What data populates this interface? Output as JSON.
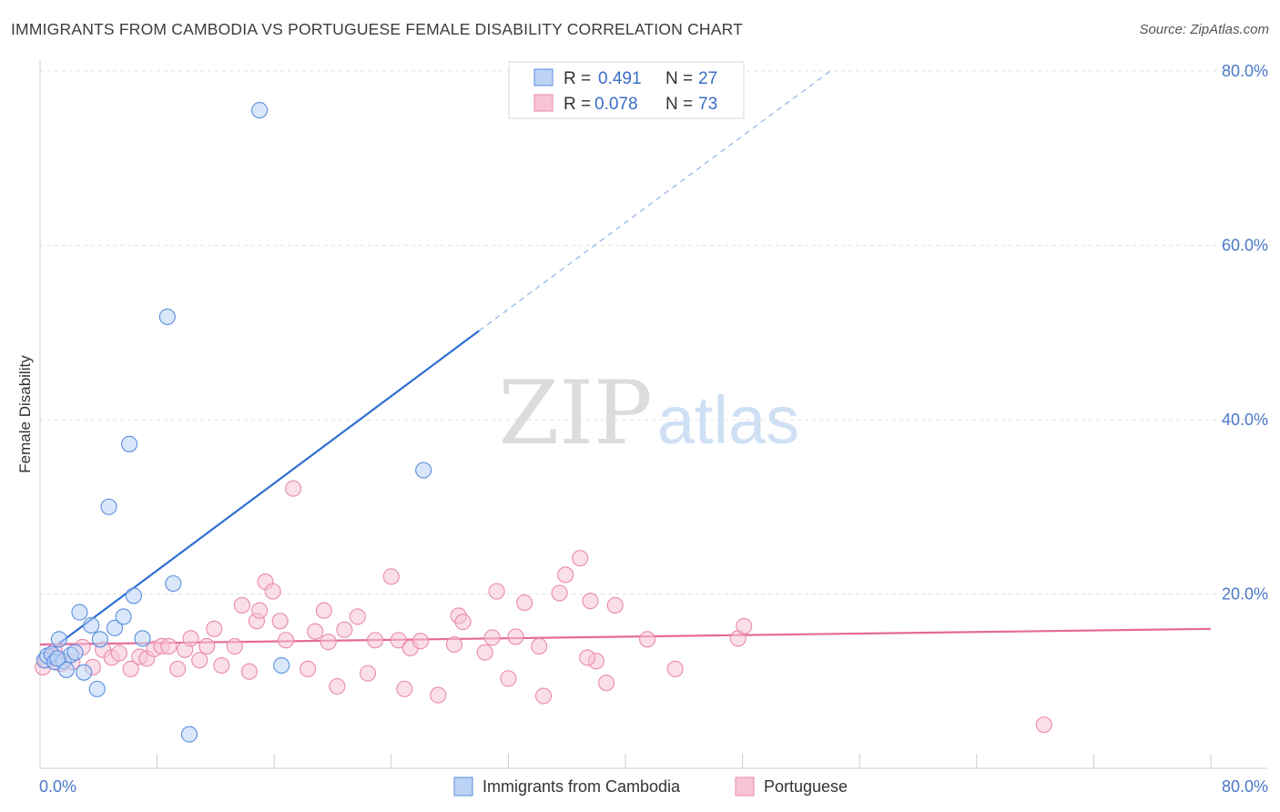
{
  "title": "IMMIGRANTS FROM CAMBODIA VS PORTUGUESE FEMALE DISABILITY CORRELATION CHART",
  "source": "Source: ZipAtlas.com",
  "colors": {
    "blue": "#4a82d8",
    "blue_fill": "#bcd3f5",
    "pink": "#e46a96",
    "pink_fill": "#f7c4d6",
    "grid": "#e3e3e3"
  },
  "chart_data": {
    "type": "scatter",
    "title": "IMMIGRANTS FROM CAMBODIA VS PORTUGUESE FEMALE DISABILITY CORRELATION CHART",
    "xlabel": "",
    "ylabel": "Female Disability",
    "xlim": [
      0,
      80
    ],
    "ylim": [
      0,
      80
    ],
    "x_tick_labels": [
      "0.0%",
      "80.0%"
    ],
    "y_tick_labels": [
      "20.0%",
      "40.0%",
      "60.0%",
      "80.0%"
    ],
    "y_ticks": [
      20,
      40,
      60,
      80
    ],
    "watermark": {
      "zip": "ZIP",
      "atlas": "atlas"
    },
    "legend": {
      "entries": [
        {
          "r_label": "R =",
          "r_value": "0.491",
          "n_label": "N =",
          "n_value": "27"
        },
        {
          "r_label": "R =",
          "r_value": "0.078",
          "n_label": "N =",
          "n_value": "73"
        }
      ]
    },
    "series": [
      {
        "name": "Immigrants from Cambodia",
        "color": "#4a82d8",
        "trend": {
          "x0": 0.4,
          "y0": 13.2,
          "x1": 30.0,
          "y1": 50.2,
          "dash_x1": 54.0,
          "dash_y1": 80.0
        },
        "points": [
          [
            0.3,
            12.4
          ],
          [
            0.5,
            12.9
          ],
          [
            0.8,
            13.1
          ],
          [
            1.0,
            12.2
          ],
          [
            1.3,
            14.8
          ],
          [
            1.6,
            12.3
          ],
          [
            1.8,
            11.3
          ],
          [
            2.1,
            13.0
          ],
          [
            2.4,
            13.3
          ],
          [
            2.7,
            17.9
          ],
          [
            3.0,
            11.0
          ],
          [
            3.5,
            16.4
          ],
          [
            3.9,
            9.1
          ],
          [
            4.1,
            14.8
          ],
          [
            5.1,
            16.1
          ],
          [
            5.7,
            17.4
          ],
          [
            6.1,
            37.2
          ],
          [
            6.4,
            19.8
          ],
          [
            4.7,
            30.0
          ],
          [
            7.0,
            14.9
          ],
          [
            8.7,
            51.8
          ],
          [
            9.1,
            21.2
          ],
          [
            10.2,
            3.9
          ],
          [
            15.0,
            75.5
          ],
          [
            16.5,
            11.8
          ],
          [
            26.2,
            34.2
          ],
          [
            1.2,
            12.6
          ]
        ]
      },
      {
        "name": "Portuguese",
        "color": "#e46a96",
        "trend": {
          "x0": 0.0,
          "y0": 14.2,
          "x1": 80.0,
          "y1": 16.0
        },
        "points": [
          [
            0.2,
            11.6
          ],
          [
            0.4,
            12.4
          ],
          [
            0.9,
            12.9
          ],
          [
            1.4,
            12.0
          ],
          [
            2.2,
            12.2
          ],
          [
            2.9,
            13.9
          ],
          [
            3.6,
            11.6
          ],
          [
            4.3,
            13.6
          ],
          [
            4.9,
            12.7
          ],
          [
            5.4,
            13.2
          ],
          [
            6.2,
            11.4
          ],
          [
            6.8,
            12.8
          ],
          [
            7.3,
            12.6
          ],
          [
            7.8,
            13.7
          ],
          [
            8.3,
            14.0
          ],
          [
            8.8,
            14.0
          ],
          [
            9.4,
            11.4
          ],
          [
            9.9,
            13.6
          ],
          [
            10.3,
            14.9
          ],
          [
            10.9,
            12.4
          ],
          [
            11.4,
            14.0
          ],
          [
            11.9,
            16.0
          ],
          [
            12.4,
            11.8
          ],
          [
            13.3,
            14.0
          ],
          [
            13.8,
            18.7
          ],
          [
            14.3,
            11.1
          ],
          [
            14.8,
            16.9
          ],
          [
            15.0,
            18.1
          ],
          [
            15.4,
            21.4
          ],
          [
            15.9,
            20.3
          ],
          [
            16.4,
            16.9
          ],
          [
            16.8,
            14.7
          ],
          [
            17.3,
            32.1
          ],
          [
            18.3,
            11.4
          ],
          [
            18.8,
            15.7
          ],
          [
            19.4,
            18.1
          ],
          [
            19.7,
            14.5
          ],
          [
            20.3,
            9.4
          ],
          [
            20.8,
            15.9
          ],
          [
            21.7,
            17.4
          ],
          [
            22.4,
            10.9
          ],
          [
            22.9,
            14.7
          ],
          [
            24.0,
            22.0
          ],
          [
            24.5,
            14.7
          ],
          [
            24.9,
            9.1
          ],
          [
            25.3,
            13.8
          ],
          [
            26.0,
            14.6
          ],
          [
            27.2,
            8.4
          ],
          [
            28.3,
            14.2
          ],
          [
            28.6,
            17.5
          ],
          [
            28.9,
            16.8
          ],
          [
            30.4,
            13.3
          ],
          [
            30.9,
            15.0
          ],
          [
            31.2,
            20.3
          ],
          [
            32.0,
            10.3
          ],
          [
            32.5,
            15.1
          ],
          [
            33.1,
            19.0
          ],
          [
            34.1,
            14.0
          ],
          [
            34.4,
            8.3
          ],
          [
            35.5,
            20.1
          ],
          [
            35.9,
            22.2
          ],
          [
            36.9,
            24.1
          ],
          [
            37.6,
            19.2
          ],
          [
            38.0,
            12.3
          ],
          [
            38.7,
            9.8
          ],
          [
            39.3,
            18.7
          ],
          [
            41.5,
            14.8
          ],
          [
            43.4,
            11.4
          ],
          [
            47.7,
            14.9
          ],
          [
            48.1,
            16.3
          ],
          [
            68.6,
            5.0
          ],
          [
            1.0,
            13.4
          ],
          [
            37.4,
            12.7
          ]
        ]
      }
    ]
  },
  "bottom_legend": [
    {
      "label": "Immigrants from Cambodia"
    },
    {
      "label": "Portuguese"
    }
  ]
}
